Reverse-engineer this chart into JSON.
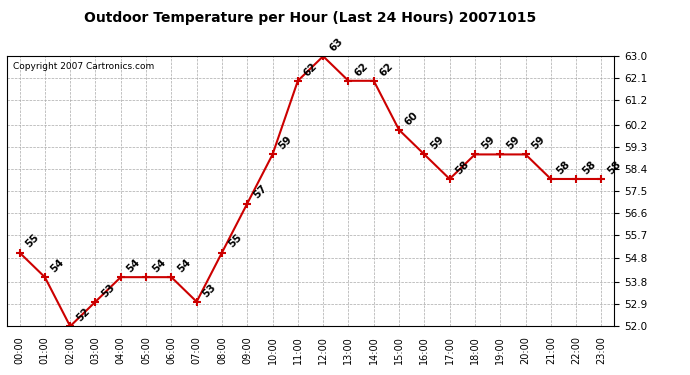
{
  "hours": [
    "00:00",
    "01:00",
    "02:00",
    "03:00",
    "04:00",
    "05:00",
    "06:00",
    "07:00",
    "08:00",
    "09:00",
    "10:00",
    "11:00",
    "12:00",
    "13:00",
    "14:00",
    "15:00",
    "16:00",
    "17:00",
    "18:00",
    "19:00",
    "20:00",
    "21:00",
    "22:00",
    "23:00"
  ],
  "temps": [
    55,
    54,
    52,
    53,
    54,
    54,
    54,
    53,
    55,
    57,
    59,
    62,
    63,
    62,
    62,
    60,
    59,
    58,
    59,
    59,
    59,
    58,
    58,
    58
  ],
  "title": "Outdoor Temperature per Hour (Last 24 Hours) 20071015",
  "copyright": "Copyright 2007 Cartronics.com",
  "line_color": "#cc0000",
  "marker_color": "#cc0000",
  "bg_color": "#ffffff",
  "grid_color": "#aaaaaa",
  "ylim_min": 52.0,
  "ylim_max": 63.0,
  "yticks": [
    52.0,
    52.9,
    53.8,
    54.8,
    55.7,
    56.6,
    57.5,
    58.4,
    59.3,
    60.2,
    61.2,
    62.1,
    63.0
  ]
}
